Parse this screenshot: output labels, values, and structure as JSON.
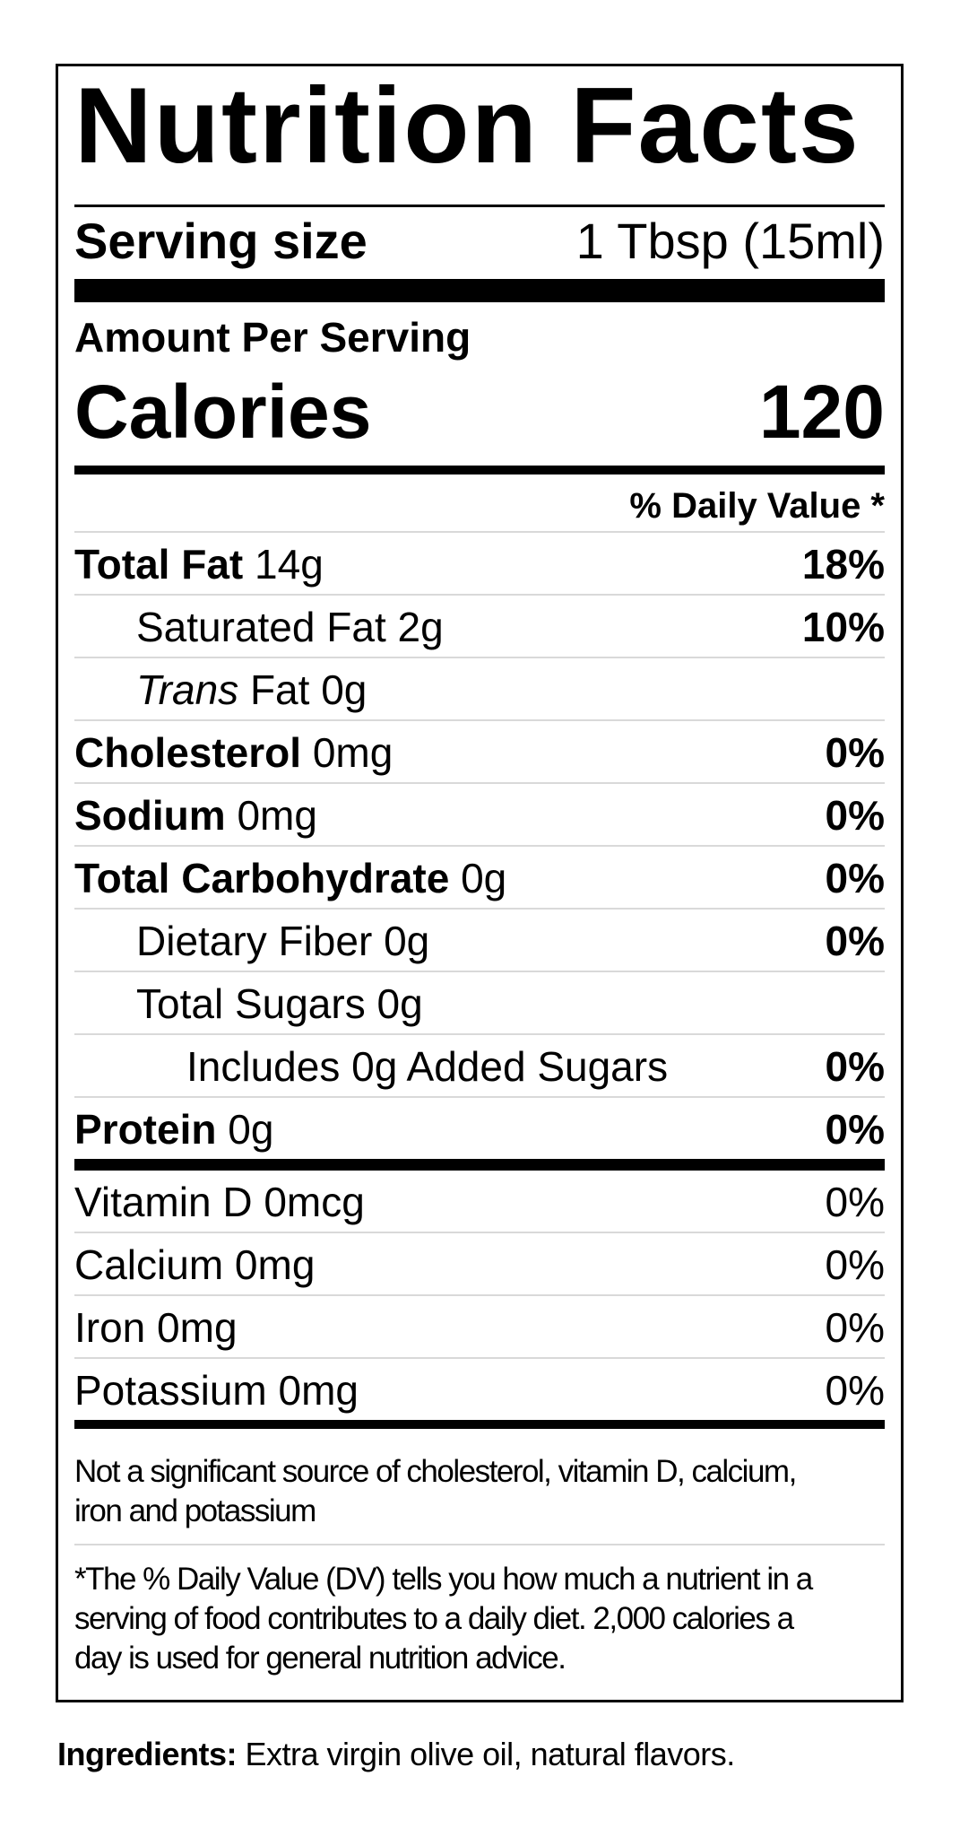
{
  "colors": {
    "text": "#000000",
    "background": "#ffffff",
    "hairline": "#d9d9d9"
  },
  "label": {
    "title": "Nutrition Facts",
    "serving": {
      "label": "Serving size",
      "value": "1 Tbsp (15ml)"
    },
    "amount_per_serving": "Amount Per Serving",
    "calories": {
      "label": "Calories",
      "value": "120"
    },
    "daily_value_header": "% Daily Value *",
    "nutrient_rows": [
      {
        "name": "Total Fat",
        "amount": "14g",
        "dv": "18%",
        "name_bold": true,
        "dv_bold": true,
        "indent": 0
      },
      {
        "name": "Saturated Fat",
        "amount": "2g",
        "dv": "10%",
        "name_bold": false,
        "dv_bold": true,
        "indent": 1
      },
      {
        "name_italic": "Trans",
        "name": " Fat",
        "amount": "0g",
        "dv": "",
        "name_bold": false,
        "dv_bold": false,
        "indent": 1
      },
      {
        "name": "Cholesterol",
        "amount": "0mg",
        "dv": "0%",
        "name_bold": true,
        "dv_bold": true,
        "indent": 0
      },
      {
        "name": "Sodium",
        "amount": "0mg",
        "dv": "0%",
        "name_bold": true,
        "dv_bold": true,
        "indent": 0
      },
      {
        "name": "Total Carbohydrate",
        "amount": "0g",
        "dv": "0%",
        "name_bold": true,
        "dv_bold": true,
        "indent": 0
      },
      {
        "name": "Dietary Fiber",
        "amount": "0g",
        "dv": "0%",
        "name_bold": false,
        "dv_bold": true,
        "indent": 1
      },
      {
        "name": "Total Sugars",
        "amount": "0g",
        "dv": "",
        "name_bold": false,
        "dv_bold": false,
        "indent": 1
      },
      {
        "name": "Includes 0g Added Sugars",
        "amount": "",
        "dv": "0%",
        "name_bold": false,
        "dv_bold": true,
        "indent": 2
      },
      {
        "name": "Protein",
        "amount": "0g",
        "dv": "0%",
        "name_bold": true,
        "dv_bold": true,
        "indent": 0
      }
    ],
    "vitamin_rows": [
      {
        "name": "Vitamin D",
        "amount": "0mcg",
        "dv": "0%"
      },
      {
        "name": "Calcium",
        "amount": "0mg",
        "dv": "0%"
      },
      {
        "name": "Iron",
        "amount": "0mg",
        "dv": "0%"
      },
      {
        "name": "Potassium",
        "amount": "0mg",
        "dv": "0%"
      }
    ],
    "note_lines": [
      "Not a significant source of cholesterol, vitamin D, calcium,",
      "iron and potassium"
    ],
    "footnote_lines": [
      "*The % Daily Value (DV) tells you how much a nutrient in a",
      "serving of food contributes to a daily diet. 2,000 calories a",
      "day is used for general nutrition advice."
    ]
  },
  "ingredients": {
    "label": "Ingredients:",
    "text": "Extra virgin olive oil, natural flavors."
  }
}
